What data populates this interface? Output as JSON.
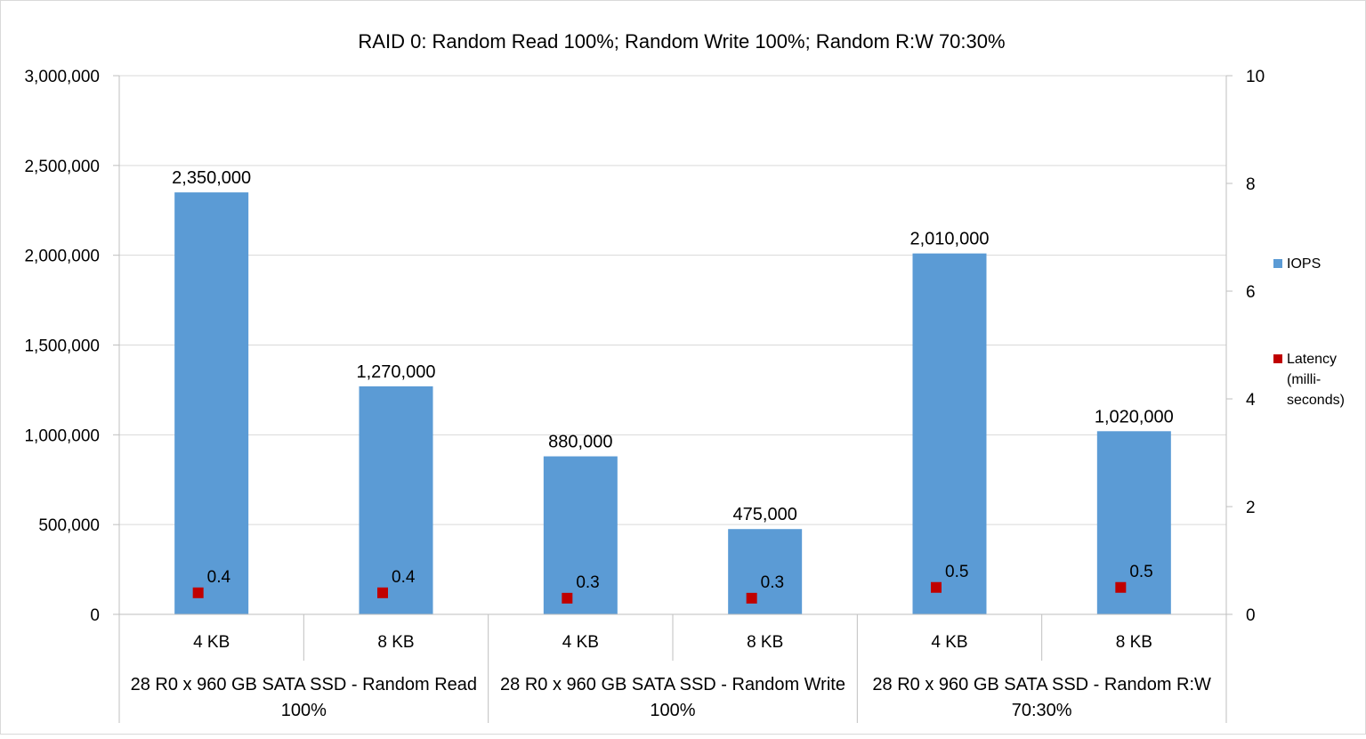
{
  "chart_data": {
    "type": "bar",
    "title": "RAID 0: Random Read 100%; Random Write 100%; Random R:W 70:30%",
    "categories": [
      "4 KB",
      "8 KB",
      "4 KB",
      "8 KB",
      "4 KB",
      "8 KB"
    ],
    "groups": [
      {
        "label_line1": "28 R0 x 960 GB SATA SSD - Random Read",
        "label_line2": "100%"
      },
      {
        "label_line1": "28 R0 x 960 GB SATA SSD - Random Write",
        "label_line2": "100%"
      },
      {
        "label_line1": "28 R0 x 960 GB SATA SSD - Random R:W",
        "label_line2": "70:30%"
      }
    ],
    "series": [
      {
        "name": "IOPS",
        "kind": "bar",
        "axis": "left",
        "color": "#5B9BD5",
        "values": [
          2350000,
          1270000,
          880000,
          475000,
          2010000,
          1020000
        ],
        "labels": [
          "2,350,000",
          "1,270,000",
          "880,000",
          "475,000",
          "2,010,000",
          "1,020,000"
        ]
      },
      {
        "name": "Latency (milli-seconds)",
        "legend_lines": [
          "Latency",
          "(milli-",
          "seconds)"
        ],
        "kind": "marker",
        "axis": "right",
        "color": "#C00000",
        "values": [
          0.4,
          0.4,
          0.3,
          0.3,
          0.5,
          0.5
        ],
        "labels": [
          "0.4",
          "0.4",
          "0.3",
          "0.3",
          "0.5",
          "0.5"
        ]
      }
    ],
    "y_left": {
      "min": 0,
      "max": 3000000,
      "step": 500000,
      "tick_labels": [
        "0",
        "500,000",
        "1,000,000",
        "1,500,000",
        "2,000,000",
        "2,500,000",
        "3,000,000"
      ]
    },
    "y_right": {
      "min": 0,
      "max": 10,
      "step": 2,
      "tick_labels": [
        "0",
        "2",
        "4",
        "6",
        "8",
        "10"
      ]
    },
    "grid": true,
    "legend_position": "right"
  }
}
